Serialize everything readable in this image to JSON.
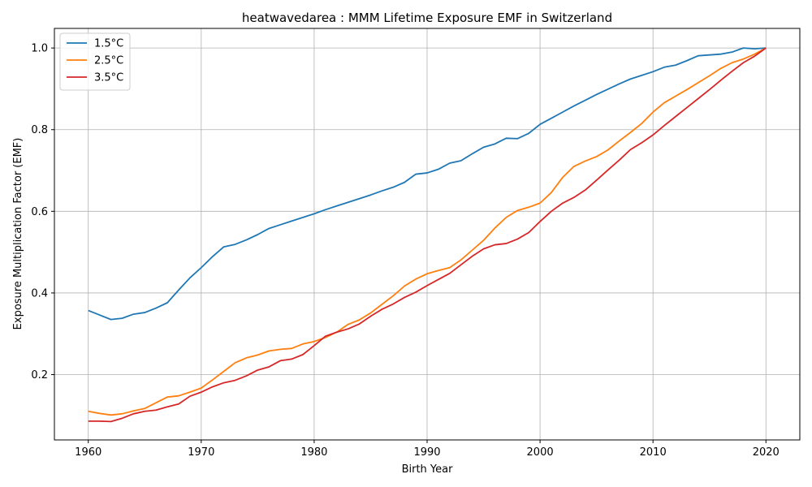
{
  "chart_data": {
    "type": "line",
    "title": "heatwavedarea : MMM Lifetime Exposure EMF in Switzerland",
    "xlabel": "Birth Year",
    "ylabel": "Exposure Multiplication Factor (EMF)",
    "xlim": [
      1957,
      2023
    ],
    "ylim": [
      0.04,
      1.048
    ],
    "xticks": [
      1960,
      1970,
      1980,
      1990,
      2000,
      2010,
      2020
    ],
    "yticks": [
      0.2,
      0.4,
      0.6,
      0.8,
      1.0
    ],
    "ytick_labels": [
      "0.2",
      "0.4",
      "0.6",
      "0.8",
      "1.0"
    ],
    "grid": true,
    "legend_position": "upper-left",
    "x": [
      1960,
      1961,
      1962,
      1963,
      1964,
      1965,
      1966,
      1967,
      1968,
      1969,
      1970,
      1971,
      1972,
      1973,
      1974,
      1975,
      1976,
      1977,
      1978,
      1979,
      1980,
      1981,
      1982,
      1983,
      1984,
      1985,
      1986,
      1987,
      1988,
      1989,
      1990,
      1991,
      1992,
      1993,
      1994,
      1995,
      1996,
      1997,
      1998,
      1999,
      2000,
      2001,
      2002,
      2003,
      2004,
      2005,
      2006,
      2007,
      2008,
      2009,
      2010,
      2011,
      2012,
      2013,
      2014,
      2015,
      2016,
      2017,
      2018,
      2019,
      2020
    ],
    "series": [
      {
        "name": "1.5°C",
        "color": "#1f77b4",
        "values": [
          0.357,
          0.346,
          0.335,
          0.338,
          0.348,
          0.352,
          0.363,
          0.376,
          0.407,
          0.437,
          0.462,
          0.489,
          0.513,
          0.519,
          0.53,
          0.543,
          0.558,
          0.567,
          0.576,
          0.585,
          0.594,
          0.604,
          0.613,
          0.622,
          0.631,
          0.64,
          0.65,
          0.659,
          0.671,
          0.691,
          0.694,
          0.703,
          0.718,
          0.724,
          0.741,
          0.757,
          0.765,
          0.779,
          0.778,
          0.791,
          0.813,
          0.828,
          0.843,
          0.858,
          0.872,
          0.886,
          0.899,
          0.912,
          0.924,
          0.933,
          0.942,
          0.953,
          0.958,
          0.969,
          0.981,
          0.983,
          0.985,
          0.99,
          1.0,
          0.998,
          1.0
        ]
      },
      {
        "name": "2.5°C",
        "color": "#ff7f0e",
        "values": [
          0.11,
          0.105,
          0.101,
          0.104,
          0.111,
          0.117,
          0.131,
          0.145,
          0.148,
          0.157,
          0.167,
          0.187,
          0.208,
          0.229,
          0.241,
          0.248,
          0.258,
          0.262,
          0.264,
          0.275,
          0.281,
          0.291,
          0.304,
          0.323,
          0.334,
          0.351,
          0.372,
          0.393,
          0.417,
          0.434,
          0.447,
          0.455,
          0.462,
          0.481,
          0.505,
          0.529,
          0.559,
          0.585,
          0.602,
          0.61,
          0.62,
          0.646,
          0.683,
          0.71,
          0.723,
          0.734,
          0.75,
          0.772,
          0.793,
          0.815,
          0.843,
          0.866,
          0.882,
          0.898,
          0.915,
          0.932,
          0.95,
          0.964,
          0.973,
          0.985,
          1.0
        ]
      },
      {
        "name": "3.5°C",
        "color": "#d62728",
        "values": [
          0.086,
          0.086,
          0.085,
          0.093,
          0.104,
          0.11,
          0.113,
          0.121,
          0.128,
          0.147,
          0.157,
          0.17,
          0.18,
          0.186,
          0.197,
          0.211,
          0.219,
          0.234,
          0.238,
          0.249,
          0.271,
          0.294,
          0.304,
          0.312,
          0.324,
          0.343,
          0.36,
          0.373,
          0.389,
          0.402,
          0.418,
          0.433,
          0.448,
          0.469,
          0.49,
          0.508,
          0.518,
          0.521,
          0.532,
          0.548,
          0.575,
          0.6,
          0.62,
          0.634,
          0.652,
          0.676,
          0.701,
          0.725,
          0.751,
          0.768,
          0.787,
          0.81,
          0.832,
          0.854,
          0.876,
          0.898,
          0.921,
          0.943,
          0.964,
          0.98,
          1.0
        ]
      }
    ]
  }
}
